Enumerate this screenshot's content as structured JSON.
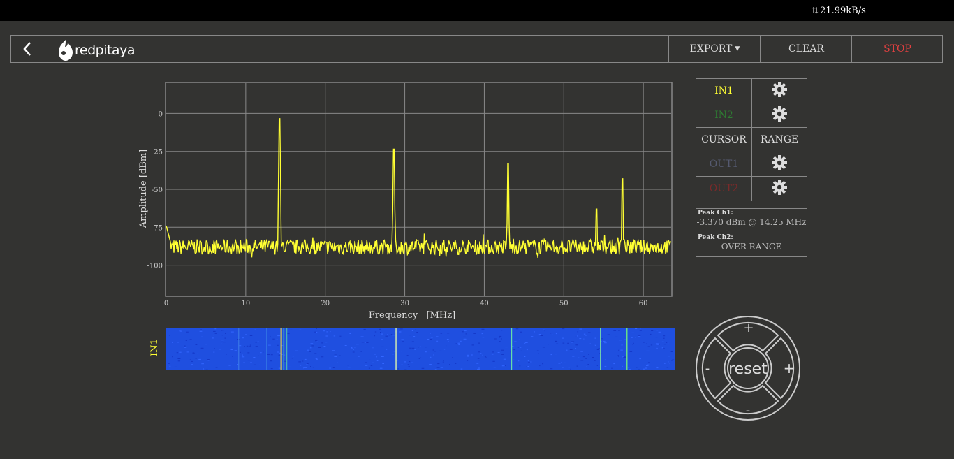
{
  "topbar": {
    "net_speed": "21.99kB/s"
  },
  "header": {
    "logo_text": "redpitaya",
    "export_label": "EXPORT",
    "clear_label": "CLEAR",
    "stop_label": "STOP"
  },
  "controls": {
    "in1": "IN1",
    "in2": "IN2",
    "cursor": "CURSOR",
    "range": "RANGE",
    "out1": "OUT1",
    "out2": "OUT2"
  },
  "peaks": {
    "ch1_title": "Peak  Ch1:",
    "ch1_value": "-3.370  dBm @ 14.25  MHz",
    "ch2_title": "Peak  Ch2:",
    "ch2_value": "OVER RANGE"
  },
  "waterfall": {
    "label": "IN1"
  },
  "dpad": {
    "reset": "reset",
    "up": "+",
    "down": "-",
    "left": "-",
    "right": "+"
  },
  "colors": {
    "in1": "#ffff33",
    "in2": "#2e7d32",
    "out1": "#555a70",
    "out2": "#7a2a2a",
    "stop": "#e04040"
  },
  "chart_data": {
    "type": "line",
    "xlabel": "Frequency   [MHz]",
    "ylabel": "Amplitude  [dBm]",
    "xlim": [
      0,
      63.5
    ],
    "ylim": [
      -120,
      20
    ],
    "xticks": [
      0,
      10,
      20,
      30,
      40,
      50,
      60
    ],
    "yticks": [
      0,
      -25,
      -50,
      -75,
      -100
    ],
    "grid": true,
    "series": [
      {
        "noise_floor": -88,
        "peaks": [
          {
            "x": 14.25,
            "y": -3.4
          },
          {
            "x": 28.6,
            "y": -23.5
          },
          {
            "x": 43.0,
            "y": -33
          },
          {
            "x": 54.1,
            "y": -63
          },
          {
            "x": 57.4,
            "y": -43
          }
        ]
      }
    ]
  }
}
